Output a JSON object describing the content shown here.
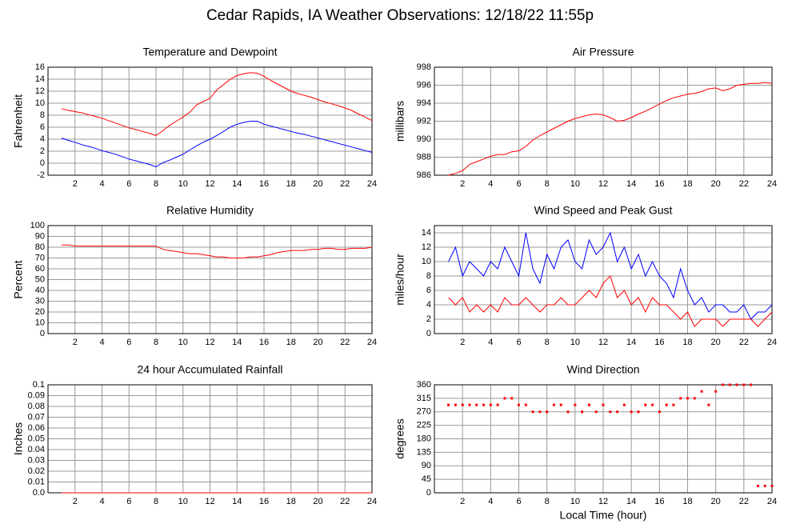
{
  "title": "Cedar Rapids, IA Weather Observations: 12/18/22 11:55p",
  "chart_data": [
    {
      "type": "line",
      "title": "Temperature and Dewpoint",
      "ylabel": "Fahrenheit",
      "grid": true,
      "xlim": [
        0,
        24
      ],
      "xticks": [
        2,
        4,
        6,
        8,
        10,
        12,
        14,
        16,
        18,
        20,
        22,
        24
      ],
      "ylim": [
        -2,
        16
      ],
      "yticks": [
        -2,
        0,
        2,
        4,
        6,
        8,
        10,
        12,
        14,
        16
      ],
      "x": [
        1,
        1.5,
        2,
        2.5,
        3,
        3.5,
        4,
        4.5,
        5,
        5.5,
        6,
        6.5,
        7,
        7.5,
        8,
        8.5,
        9,
        9.5,
        10,
        10.5,
        11,
        11.5,
        12,
        12.5,
        13,
        13.5,
        14,
        14.5,
        15,
        15.5,
        16,
        16.5,
        17,
        17.5,
        18,
        18.5,
        19,
        19.5,
        20,
        20.5,
        21,
        21.5,
        22,
        22.5,
        23,
        23.5,
        24
      ],
      "series": [
        {
          "color": "#ff0000",
          "values": [
            9.1,
            8.8,
            8.6,
            8.4,
            8.1,
            7.8,
            7.5,
            7.1,
            6.7,
            6.3,
            5.9,
            5.6,
            5.3,
            5.0,
            4.6,
            5.4,
            6.3,
            7.0,
            7.7,
            8.5,
            9.7,
            10.3,
            10.8,
            12.2,
            13.1,
            14.0,
            14.6,
            14.9,
            15.1,
            15.0,
            14.5,
            13.8,
            13.2,
            12.6,
            12.0,
            11.6,
            11.3,
            11.0,
            10.6,
            10.2,
            9.9,
            9.6,
            9.2,
            8.8,
            8.2,
            7.7,
            7.1
          ]
        },
        {
          "color": "#0000ff",
          "values": [
            4.2,
            3.8,
            3.5,
            3.1,
            2.8,
            2.5,
            2.1,
            1.8,
            1.5,
            1.1,
            0.7,
            0.4,
            0.1,
            -0.2,
            -0.6,
            0.1,
            0.5,
            1.0,
            1.5,
            2.2,
            2.9,
            3.5,
            4.0,
            4.6,
            5.3,
            6.0,
            6.5,
            6.8,
            7.0,
            7.0,
            6.5,
            6.2,
            5.9,
            5.6,
            5.3,
            5.0,
            4.8,
            4.5,
            4.2,
            3.9,
            3.6,
            3.3,
            3.0,
            2.7,
            2.4,
            2.1,
            1.8
          ]
        }
      ]
    },
    {
      "type": "line",
      "title": "Air Pressure",
      "ylabel": "millibars",
      "grid": true,
      "xlim": [
        0,
        24
      ],
      "xticks": [
        2,
        4,
        6,
        8,
        10,
        12,
        14,
        16,
        18,
        20,
        22,
        24
      ],
      "ylim": [
        986,
        998
      ],
      "yticks": [
        986,
        988,
        990,
        992,
        994,
        996,
        998
      ],
      "x": [
        1,
        1.5,
        2,
        2.5,
        3,
        3.5,
        4,
        4.5,
        5,
        5.5,
        6,
        6.5,
        7,
        7.5,
        8,
        8.5,
        9,
        9.5,
        10,
        10.5,
        11,
        11.5,
        12,
        12.5,
        13,
        13.5,
        14,
        14.5,
        15,
        15.5,
        16,
        16.5,
        17,
        17.5,
        18,
        18.5,
        19,
        19.5,
        20,
        20.5,
        21,
        21.5,
        22,
        22.5,
        23,
        23.5,
        24
      ],
      "series": [
        {
          "color": "#ff0000",
          "values": [
            986.0,
            986.2,
            986.5,
            987.2,
            987.5,
            987.8,
            988.1,
            988.3,
            988.3,
            988.6,
            988.7,
            989.2,
            989.9,
            990.4,
            990.8,
            991.2,
            991.6,
            992.0,
            992.3,
            992.5,
            992.7,
            992.8,
            992.7,
            992.4,
            992.0,
            992.1,
            992.4,
            992.8,
            993.1,
            993.5,
            993.9,
            994.3,
            994.6,
            994.8,
            995.0,
            995.1,
            995.3,
            995.6,
            995.7,
            995.4,
            995.6,
            996.0,
            996.1,
            996.2,
            996.2,
            996.3,
            996.2
          ]
        }
      ]
    },
    {
      "type": "line",
      "title": "Relative Humidity",
      "ylabel": "Percent",
      "grid": true,
      "xlim": [
        0,
        24
      ],
      "xticks": [
        2,
        4,
        6,
        8,
        10,
        12,
        14,
        16,
        18,
        20,
        22,
        24
      ],
      "ylim": [
        0,
        100
      ],
      "yticks": [
        0,
        10,
        20,
        30,
        40,
        50,
        60,
        70,
        80,
        90,
        100
      ],
      "x": [
        1,
        1.5,
        2,
        2.5,
        3,
        3.5,
        4,
        4.5,
        5,
        5.5,
        6,
        6.5,
        7,
        7.5,
        8,
        8.5,
        9,
        9.5,
        10,
        10.5,
        11,
        11.5,
        12,
        12.5,
        13,
        13.5,
        14,
        14.5,
        15,
        15.5,
        16,
        16.5,
        17,
        17.5,
        18,
        18.5,
        19,
        19.5,
        20,
        20.5,
        21,
        21.5,
        22,
        22.5,
        23,
        23.5,
        24
      ],
      "series": [
        {
          "color": "#ff0000",
          "values": [
            82,
            82,
            81,
            81,
            81,
            81,
            81,
            81,
            81,
            81,
            81,
            81,
            81,
            81,
            81,
            78,
            77,
            76,
            75,
            74,
            74,
            73,
            72,
            71,
            71,
            70,
            70,
            70,
            71,
            71,
            72,
            73,
            75,
            76,
            77,
            77,
            77,
            78,
            78,
            79,
            79,
            78,
            78,
            79,
            79,
            79,
            80
          ]
        }
      ]
    },
    {
      "type": "line",
      "title": "Wind Speed and Peak Gust",
      "ylabel": "miles/hour",
      "grid": true,
      "xlim": [
        0,
        24
      ],
      "xticks": [
        2,
        4,
        6,
        8,
        10,
        12,
        14,
        16,
        18,
        20,
        22,
        24
      ],
      "ylim": [
        0,
        15
      ],
      "yticks": [
        0,
        2,
        4,
        6,
        8,
        10,
        12,
        14
      ],
      "x": [
        1,
        1.5,
        2,
        2.5,
        3,
        3.5,
        4,
        4.5,
        5,
        5.5,
        6,
        6.5,
        7,
        7.5,
        8,
        8.5,
        9,
        9.5,
        10,
        10.5,
        11,
        11.5,
        12,
        12.5,
        13,
        13.5,
        14,
        14.5,
        15,
        15.5,
        16,
        16.5,
        17,
        17.5,
        18,
        18.5,
        19,
        19.5,
        20,
        20.5,
        21,
        21.5,
        22,
        22.5,
        23,
        23.5,
        24
      ],
      "series": [
        {
          "color": "#0000ff",
          "values": [
            10,
            12,
            8,
            10,
            9,
            8,
            10,
            9,
            12,
            10,
            8,
            14,
            9,
            7,
            11,
            9,
            12,
            13,
            10,
            9,
            13,
            11,
            12,
            14,
            10,
            12,
            9,
            11,
            8,
            10,
            8,
            7,
            5,
            9,
            6,
            4,
            5,
            3,
            4,
            4,
            3,
            3,
            4,
            2,
            3,
            3,
            4
          ]
        },
        {
          "color": "#ff0000",
          "values": [
            5,
            4,
            5,
            3,
            4,
            3,
            4,
            3,
            5,
            4,
            4,
            5,
            4,
            3,
            4,
            4,
            5,
            4,
            4,
            5,
            6,
            5,
            7,
            8,
            5,
            6,
            4,
            5,
            3,
            5,
            4,
            4,
            3,
            2,
            3,
            1,
            2,
            2,
            2,
            1,
            2,
            2,
            2,
            2,
            1,
            2,
            3
          ]
        }
      ]
    },
    {
      "type": "line",
      "title": "24 hour Accumulated Rainfall",
      "ylabel": "Inches",
      "grid": true,
      "xlim": [
        0,
        24
      ],
      "xticks": [
        2,
        4,
        6,
        8,
        10,
        12,
        14,
        16,
        18,
        20,
        22,
        24
      ],
      "ylim": [
        0,
        0.1
      ],
      "yticks": [
        {
          "value": 0,
          "label": "0.0"
        },
        0.01,
        0.02,
        0.03,
        0.04,
        0.05,
        0.06,
        0.07,
        0.08,
        0.09,
        {
          "value": 0.1,
          "label": "0.1"
        }
      ],
      "x": [
        1,
        24
      ],
      "series": [
        {
          "color": "#ff0000",
          "values": [
            0,
            0
          ]
        }
      ]
    },
    {
      "type": "scatter",
      "title": "Wind Direction",
      "ylabel": "degrees",
      "xlabel": "Local Time (hour)",
      "grid": true,
      "xlim": [
        0,
        24
      ],
      "xticks": [
        2,
        4,
        6,
        8,
        10,
        12,
        14,
        16,
        18,
        20,
        22,
        24
      ],
      "ylim": [
        0,
        360
      ],
      "yticks": [
        0,
        45,
        90,
        135,
        180,
        225,
        270,
        315,
        360
      ],
      "x": [
        1,
        1.5,
        2,
        2.5,
        3,
        3.5,
        4,
        4.5,
        5,
        5.5,
        6,
        6.5,
        7,
        7.5,
        8,
        8.5,
        9,
        9.5,
        10,
        10.5,
        11,
        11.5,
        12,
        12.5,
        13,
        13.5,
        14,
        14.5,
        15,
        15.5,
        16,
        16.5,
        17,
        17.5,
        18,
        18.5,
        19,
        19.5,
        20,
        20.5,
        21,
        21.5,
        22,
        22.5,
        23,
        23.5,
        24
      ],
      "series": [
        {
          "color": "#ff0000",
          "values": [
            293,
            293,
            293,
            293,
            293,
            293,
            293,
            293,
            315,
            315,
            293,
            293,
            270,
            270,
            270,
            293,
            293,
            270,
            293,
            270,
            293,
            270,
            293,
            270,
            270,
            293,
            270,
            270,
            293,
            293,
            270,
            293,
            293,
            315,
            315,
            315,
            338,
            293,
            338,
            360,
            360,
            360,
            360,
            360,
            23,
            23,
            23
          ]
        }
      ]
    }
  ]
}
